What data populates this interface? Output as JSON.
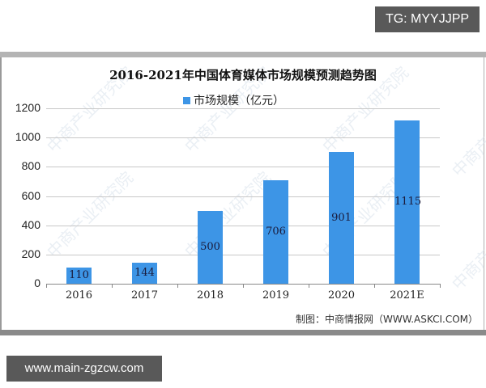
{
  "badges": {
    "top_right": "TG: MYYJJPP",
    "bottom_left": "www.main-zgzcw.com"
  },
  "watermark": "中商产业研究院",
  "source_note": "制图：中商情报网（WWW.ASKCI.COM）",
  "colors": {
    "bar": "#3d95e6",
    "grid": "#c8c8c8"
  },
  "chart_data": {
    "type": "bar",
    "title": "2016-2021年中国体育媒体市场规模预测趋势图",
    "xlabel": "",
    "ylabel": "",
    "legend": [
      "市场规模（亿元）"
    ],
    "legend_position": "top",
    "grid": true,
    "ylim": [
      0,
      1200
    ],
    "yticks": [
      "0",
      "200",
      "400",
      "600",
      "800",
      "1000",
      "1200"
    ],
    "categories": [
      "2016",
      "2017",
      "2018",
      "2019",
      "2020",
      "2021E"
    ],
    "series": [
      {
        "name": "市场规模（亿元）",
        "values": [
          110,
          144,
          500,
          706,
          901,
          1115
        ]
      }
    ],
    "value_labels": [
      "110",
      "144",
      "500",
      "706",
      "901",
      "1115"
    ]
  }
}
